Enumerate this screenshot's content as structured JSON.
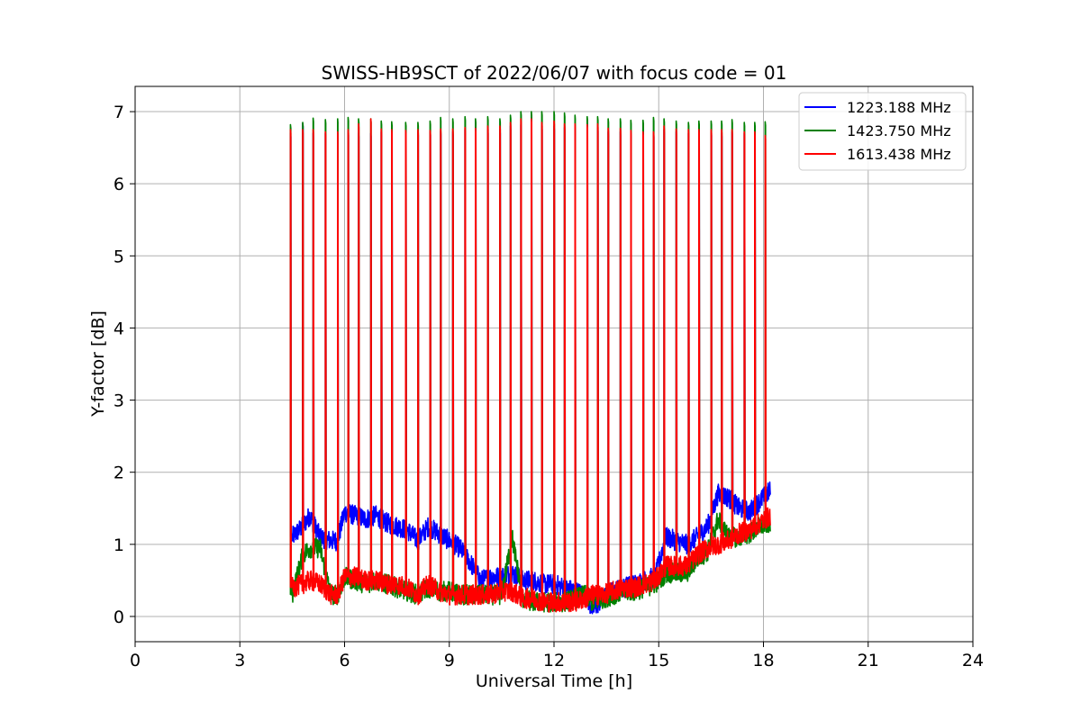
{
  "chart_data": {
    "type": "line",
    "title": "SWISS-HB9SCT of 2022/06/07 with focus code = 01",
    "xlabel": "Universal Time [h]",
    "ylabel": "Y-factor [dB]",
    "xlim": [
      0,
      24
    ],
    "ylim": [
      -0.35,
      7.35
    ],
    "xticks": [
      0,
      3,
      6,
      9,
      12,
      15,
      18,
      21,
      24
    ],
    "yticks": [
      0,
      1,
      2,
      3,
      4,
      5,
      6,
      7
    ],
    "grid": true,
    "legend_position": "top-right",
    "calibration_peaks_x": [
      4.45,
      4.8,
      5.1,
      5.45,
      5.8,
      6.1,
      6.4,
      6.75,
      7.05,
      7.35,
      7.75,
      8.1,
      8.45,
      8.75,
      9.1,
      9.45,
      9.75,
      10.1,
      10.45,
      10.75,
      11.05,
      11.35,
      11.65,
      12.0,
      12.3,
      12.6,
      12.95,
      13.25,
      13.55,
      13.9,
      14.2,
      14.55,
      14.85,
      15.15,
      15.5,
      15.85,
      16.15,
      16.5,
      16.8,
      17.1,
      17.45,
      17.75,
      18.05
    ],
    "peak_height": {
      "1613.438 MHz": [
        6.75,
        6.75,
        6.75,
        6.72,
        6.72,
        6.75,
        6.83,
        6.9,
        6.76,
        6.75,
        6.74,
        6.75,
        6.74,
        6.76,
        6.76,
        6.78,
        6.77,
        6.8,
        6.8,
        6.85,
        6.9,
        6.9,
        6.85,
        6.87,
        6.83,
        6.83,
        6.82,
        6.83,
        6.77,
        6.77,
        6.74,
        6.72,
        6.72,
        6.8,
        6.76,
        6.75,
        6.75,
        6.75,
        6.75,
        6.75,
        6.72,
        6.72,
        6.67
      ],
      "1423.750 MHz": [
        6.82,
        6.85,
        6.91,
        6.89,
        6.9,
        6.92,
        6.9,
        6.9,
        6.87,
        6.86,
        6.85,
        6.85,
        6.87,
        6.92,
        6.9,
        6.93,
        6.9,
        6.93,
        6.9,
        6.95,
        7.0,
        7.0,
        7.0,
        7.0,
        6.98,
        6.95,
        6.93,
        6.93,
        6.9,
        6.9,
        6.88,
        6.88,
        6.92,
        6.9,
        6.87,
        6.85,
        6.87,
        6.87,
        6.87,
        6.89,
        6.85,
        6.85,
        6.86
      ],
      "1223.188 MHz": [
        6.7,
        6.84,
        6.7,
        6.7,
        6.7,
        6.72,
        6.7,
        6.7,
        6.72,
        6.7,
        6.7,
        6.72,
        6.72,
        6.73,
        6.72,
        6.75,
        6.75,
        6.75,
        6.75,
        6.8,
        6.82,
        6.85,
        6.8,
        6.8,
        6.78,
        6.78,
        6.77,
        6.78,
        6.72,
        6.72,
        6.7,
        6.7,
        6.7,
        6.75,
        6.72,
        6.7,
        6.7,
        6.72,
        6.7,
        6.72,
        6.7,
        6.7,
        1.8
      ]
    },
    "series": [
      {
        "name": "1223.188 MHz",
        "color": "#0000ff",
        "x": [
          4.5,
          4.8,
          5.0,
          5.3,
          5.6,
          5.8,
          6.0,
          6.3,
          6.6,
          6.9,
          7.2,
          7.5,
          7.8,
          8.1,
          8.4,
          8.7,
          9.0,
          9.3,
          9.6,
          9.9,
          10.2,
          10.5,
          10.8,
          11.1,
          11.4,
          11.7,
          12.0,
          12.3,
          12.6,
          12.9,
          13.1,
          13.4,
          13.7,
          14.0,
          14.3,
          14.6,
          14.9,
          15.2,
          15.5,
          15.8,
          16.1,
          16.4,
          16.7,
          17.0,
          17.3,
          17.6,
          17.9,
          18.2
        ],
        "y": [
          1.1,
          1.25,
          1.4,
          1.1,
          1.05,
          1.05,
          1.45,
          1.4,
          1.35,
          1.4,
          1.3,
          1.25,
          1.2,
          1.05,
          1.25,
          1.15,
          1.05,
          0.95,
          0.75,
          0.5,
          0.55,
          0.55,
          0.6,
          0.5,
          0.5,
          0.45,
          0.45,
          0.4,
          0.35,
          0.3,
          0.1,
          0.25,
          0.35,
          0.4,
          0.45,
          0.5,
          0.55,
          1.1,
          1.05,
          1.0,
          1.1,
          1.25,
          1.7,
          1.65,
          1.5,
          1.45,
          1.6,
          1.75
        ]
      },
      {
        "name": "1423.750 MHz",
        "color": "#008000",
        "x": [
          4.5,
          4.8,
          5.0,
          5.3,
          5.6,
          5.8,
          6.0,
          6.3,
          6.6,
          6.9,
          7.2,
          7.5,
          7.8,
          8.1,
          8.4,
          8.7,
          9.0,
          9.3,
          9.6,
          9.9,
          10.2,
          10.5,
          10.8,
          11.1,
          11.4,
          11.7,
          12.0,
          12.3,
          12.6,
          12.9,
          13.1,
          13.4,
          13.7,
          14.0,
          14.3,
          14.6,
          14.9,
          15.2,
          15.5,
          15.8,
          16.1,
          16.4,
          16.7,
          17.0,
          17.3,
          17.6,
          17.9,
          18.2
        ],
        "y": [
          0.3,
          0.85,
          0.95,
          0.95,
          0.3,
          0.3,
          0.55,
          0.5,
          0.45,
          0.5,
          0.45,
          0.4,
          0.35,
          0.3,
          0.4,
          0.35,
          0.35,
          0.3,
          0.3,
          0.3,
          0.3,
          0.3,
          1.1,
          0.25,
          0.2,
          0.2,
          0.2,
          0.2,
          0.25,
          0.3,
          0.2,
          0.25,
          0.3,
          0.35,
          0.35,
          0.4,
          0.45,
          0.6,
          0.6,
          0.6,
          0.8,
          0.9,
          1.35,
          1.1,
          1.1,
          1.15,
          1.25,
          1.3
        ]
      },
      {
        "name": "1613.438 MHz",
        "color": "#ff0000",
        "x": [
          4.5,
          4.8,
          5.0,
          5.3,
          5.6,
          5.8,
          6.0,
          6.3,
          6.6,
          6.9,
          7.2,
          7.5,
          7.8,
          8.1,
          8.4,
          8.7,
          9.0,
          9.3,
          9.6,
          9.9,
          10.2,
          10.5,
          10.8,
          11.1,
          11.4,
          11.7,
          12.0,
          12.3,
          12.6,
          12.9,
          13.1,
          13.4,
          13.7,
          14.0,
          14.3,
          14.6,
          14.9,
          15.2,
          15.5,
          15.8,
          16.1,
          16.4,
          16.7,
          17.0,
          17.3,
          17.6,
          17.9,
          18.2
        ],
        "y": [
          0.4,
          0.45,
          0.5,
          0.45,
          0.3,
          0.3,
          0.55,
          0.55,
          0.5,
          0.5,
          0.45,
          0.45,
          0.4,
          0.3,
          0.45,
          0.35,
          0.3,
          0.3,
          0.3,
          0.3,
          0.3,
          0.35,
          0.35,
          0.25,
          0.25,
          0.2,
          0.2,
          0.2,
          0.2,
          0.25,
          0.3,
          0.3,
          0.35,
          0.4,
          0.4,
          0.45,
          0.5,
          0.7,
          0.7,
          0.7,
          0.85,
          0.95,
          1.0,
          1.05,
          1.15,
          1.2,
          1.3,
          1.4
        ]
      }
    ]
  }
}
